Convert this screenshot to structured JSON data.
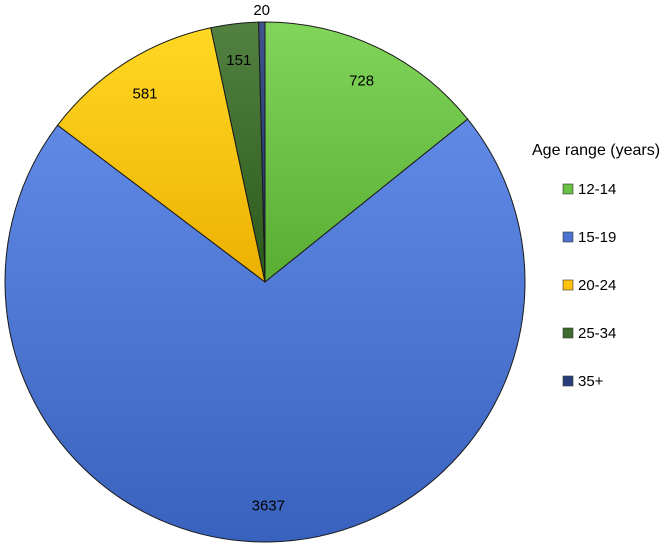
{
  "chart_data": {
    "type": "pie",
    "title": "",
    "legend_title": "Age range (years)",
    "legend_position": "right",
    "start_angle_deg": 90,
    "direction": "clockwise",
    "slices": [
      {
        "label": "12-14",
        "value": 728,
        "color": "#6bbf45"
      },
      {
        "label": "15-19",
        "value": 3637,
        "color": "#4a74cf"
      },
      {
        "label": "20-24",
        "value": 581,
        "color": "#ffc20e"
      },
      {
        "label": "25-34",
        "value": 151,
        "color": "#3d6b2c"
      },
      {
        "label": "35+",
        "value": 20,
        "color": "#2a3f7a"
      }
    ]
  }
}
